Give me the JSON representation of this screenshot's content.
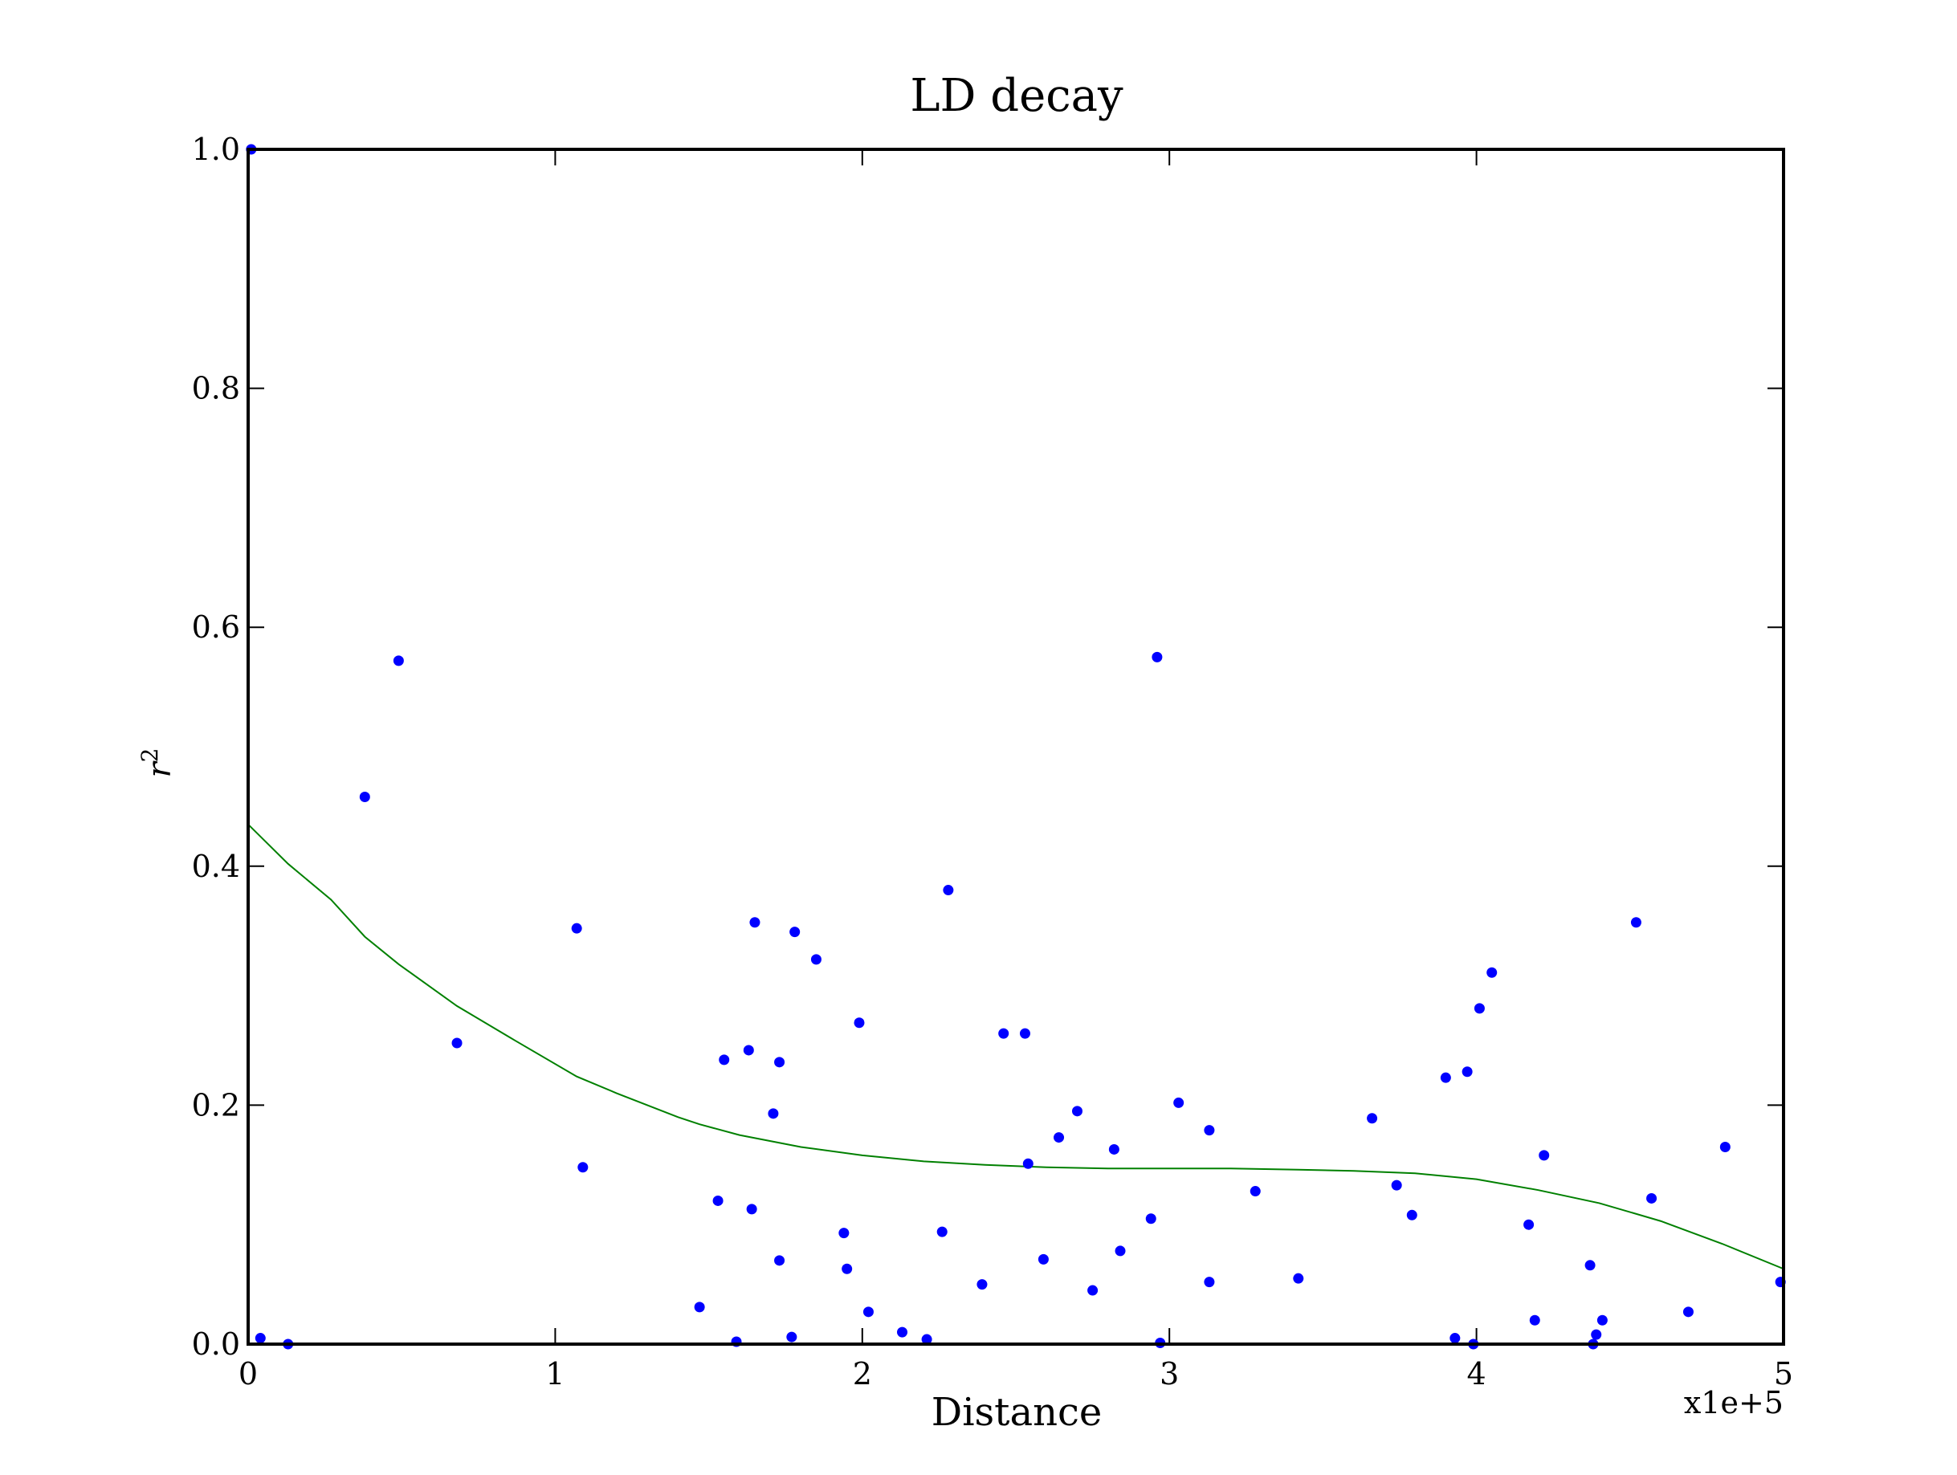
{
  "chart_data": {
    "type": "scatter",
    "title": "LD decay",
    "xlabel": "Distance",
    "ylabel_base": "r",
    "ylabel_exp": "2",
    "x_multiplier_label": "x1e+5",
    "xlim": [
      0,
      5
    ],
    "ylim": [
      0,
      1.0
    ],
    "x_ticks": [
      0,
      1,
      2,
      3,
      4,
      5
    ],
    "x_tick_labels": [
      "0",
      "1",
      "2",
      "3",
      "4",
      "5"
    ],
    "y_ticks": [
      0,
      0.2,
      0.4,
      0.6,
      0.8,
      1.0
    ],
    "y_tick_labels": [
      "0.0",
      "0.2",
      "0.4",
      "0.6",
      "0.8",
      "1.0"
    ],
    "grid": false,
    "colors": {
      "points": "#0000ff",
      "curve": "#008000",
      "frame": "#000000"
    },
    "points": [
      [
        0.01,
        1.0
      ],
      [
        0.04,
        0.005
      ],
      [
        0.13,
        0.0
      ],
      [
        0.38,
        0.458
      ],
      [
        0.49,
        0.572
      ],
      [
        0.68,
        0.252
      ],
      [
        1.07,
        0.348
      ],
      [
        1.09,
        0.148
      ],
      [
        1.47,
        0.031
      ],
      [
        1.53,
        0.12
      ],
      [
        1.55,
        0.238
      ],
      [
        1.59,
        0.002
      ],
      [
        1.63,
        0.246
      ],
      [
        1.64,
        0.113
      ],
      [
        1.65,
        0.353
      ],
      [
        1.71,
        0.193
      ],
      [
        1.73,
        0.236
      ],
      [
        1.73,
        0.07
      ],
      [
        1.77,
        0.006
      ],
      [
        1.78,
        0.345
      ],
      [
        1.85,
        0.322
      ],
      [
        1.94,
        0.093
      ],
      [
        1.95,
        0.063
      ],
      [
        1.99,
        0.269
      ],
      [
        2.02,
        0.027
      ],
      [
        2.13,
        0.01
      ],
      [
        2.21,
        0.004
      ],
      [
        2.26,
        0.094
      ],
      [
        2.28,
        0.38
      ],
      [
        2.39,
        0.05
      ],
      [
        2.46,
        0.26
      ],
      [
        2.53,
        0.26
      ],
      [
        2.54,
        0.151
      ],
      [
        2.59,
        0.071
      ],
      [
        2.64,
        0.173
      ],
      [
        2.7,
        0.195
      ],
      [
        2.75,
        0.045
      ],
      [
        2.82,
        0.163
      ],
      [
        2.84,
        0.078
      ],
      [
        2.94,
        0.105
      ],
      [
        2.96,
        0.575
      ],
      [
        2.97,
        0.001
      ],
      [
        3.03,
        0.202
      ],
      [
        3.13,
        0.052
      ],
      [
        3.13,
        0.179
      ],
      [
        3.28,
        0.128
      ],
      [
        3.42,
        0.055
      ],
      [
        3.66,
        0.189
      ],
      [
        3.74,
        0.133
      ],
      [
        3.79,
        0.108
      ],
      [
        3.9,
        0.223
      ],
      [
        3.93,
        0.005
      ],
      [
        3.97,
        0.228
      ],
      [
        3.99,
        0.0
      ],
      [
        4.01,
        0.281
      ],
      [
        4.05,
        0.311
      ],
      [
        4.17,
        0.1
      ],
      [
        4.19,
        0.02
      ],
      [
        4.22,
        0.158
      ],
      [
        4.37,
        0.066
      ],
      [
        4.38,
        0.0
      ],
      [
        4.39,
        0.008
      ],
      [
        4.41,
        0.02
      ],
      [
        4.52,
        0.353
      ],
      [
        4.57,
        0.122
      ],
      [
        4.69,
        0.027
      ],
      [
        4.81,
        0.165
      ],
      [
        4.99,
        0.052
      ]
    ],
    "fit_curve": [
      [
        0.0,
        0.435
      ],
      [
        0.13,
        0.402
      ],
      [
        0.27,
        0.372
      ],
      [
        0.38,
        0.341
      ],
      [
        0.49,
        0.318
      ],
      [
        0.68,
        0.283
      ],
      [
        0.87,
        0.254
      ],
      [
        1.07,
        0.224
      ],
      [
        1.2,
        0.21
      ],
      [
        1.4,
        0.19
      ],
      [
        1.47,
        0.184
      ],
      [
        1.6,
        0.175
      ],
      [
        1.8,
        0.165
      ],
      [
        2.0,
        0.158
      ],
      [
        2.2,
        0.153
      ],
      [
        2.4,
        0.15
      ],
      [
        2.6,
        0.148
      ],
      [
        2.8,
        0.147
      ],
      [
        3.0,
        0.147
      ],
      [
        3.2,
        0.147
      ],
      [
        3.42,
        0.146
      ],
      [
        3.6,
        0.145
      ],
      [
        3.8,
        0.143
      ],
      [
        4.0,
        0.138
      ],
      [
        4.2,
        0.129
      ],
      [
        4.4,
        0.118
      ],
      [
        4.6,
        0.103
      ],
      [
        4.8,
        0.084
      ],
      [
        5.0,
        0.063
      ]
    ]
  }
}
